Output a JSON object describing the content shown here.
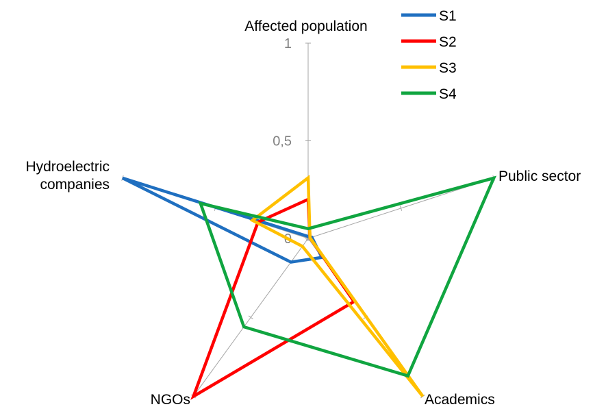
{
  "chart_data": {
    "type": "radar",
    "axes": [
      "Affected population",
      "Public sector",
      "Academics",
      "NGOs",
      "Hydroelectric companies"
    ],
    "axis_labels_display": [
      "Affected population",
      "Public sector",
      "Academics",
      "NGOs",
      "Hydroelectric\ncompanies"
    ],
    "range": [
      0,
      1
    ],
    "ticks": [
      "0",
      "0,5",
      "1"
    ],
    "tick_values": [
      0,
      0.5,
      1
    ],
    "series": [
      {
        "name": "S1",
        "color": "#1F6FC0",
        "values": [
          0.01,
          0.02,
          0.12,
          0.15,
          1.0
        ]
      },
      {
        "name": "S2",
        "color": "#FF0000",
        "values": [
          0.2,
          0.01,
          0.4,
          1.0,
          0.27
        ]
      },
      {
        "name": "S3",
        "color": "#FFC000",
        "values": [
          0.31,
          0.01,
          1.0,
          0.05,
          0.3
        ]
      },
      {
        "name": "S4",
        "color": "#10A540",
        "values": [
          0.05,
          1.0,
          0.87,
          0.56,
          0.58
        ]
      }
    ],
    "legend_position": "top-right",
    "grid": false
  }
}
